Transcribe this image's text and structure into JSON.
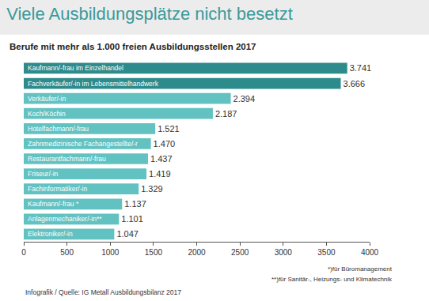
{
  "chart_data": {
    "type": "bar",
    "orientation": "horizontal",
    "title": "Viele Ausbildungsplätze nicht besetzt",
    "subtitle": "Berufe mit mehr als 1.000 freien Ausbildungsstellen 2017",
    "categories": [
      "Kaufmann/-frau im Einzelhandel",
      "Fachverkäufer/-in im Lebensmittelhandwerk",
      "Verkäufer/-in",
      "Koch/Köchin",
      "Hotelfachmann/-frau",
      "Zahnmedizinische Fachangestellte/-r",
      "Restaurantfachmann/-frau",
      "Friseur/-in",
      "Fachinformatiker/-in",
      "Kaufmann/-frau *",
      "Anlagenmechaniker/-in**",
      "Elektroniker/-in"
    ],
    "values": [
      3741,
      3666,
      2394,
      2187,
      1521,
      1470,
      1437,
      1419,
      1329,
      1137,
      1101,
      1047
    ],
    "value_labels": [
      "3.741",
      "3.666",
      "2.394",
      "2.187",
      "1.521",
      "1.470",
      "1.437",
      "1.419",
      "1.329",
      "1.137",
      "1.101",
      "1.047"
    ],
    "colors": [
      "#2e8b8b",
      "#2e8b8b",
      "#62c2c2",
      "#62c2c2",
      "#62c2c2",
      "#62c2c2",
      "#62c2c2",
      "#62c2c2",
      "#62c2c2",
      "#62c2c2",
      "#62c2c2",
      "#62c2c2"
    ],
    "xlim": [
      0,
      4000
    ],
    "xticks": [
      0,
      500,
      1000,
      1500,
      2000,
      2500,
      3000,
      3500,
      4000
    ],
    "grid": false,
    "data_labels": true,
    "tick_labels": "x",
    "annotations": [
      "*)für Büromanagement",
      "**)für Sanitär-, Heizungs- und Klimatechnik",
      "Infografik / Quelle: IG Metall Ausbildungsbilanz 2017"
    ]
  }
}
